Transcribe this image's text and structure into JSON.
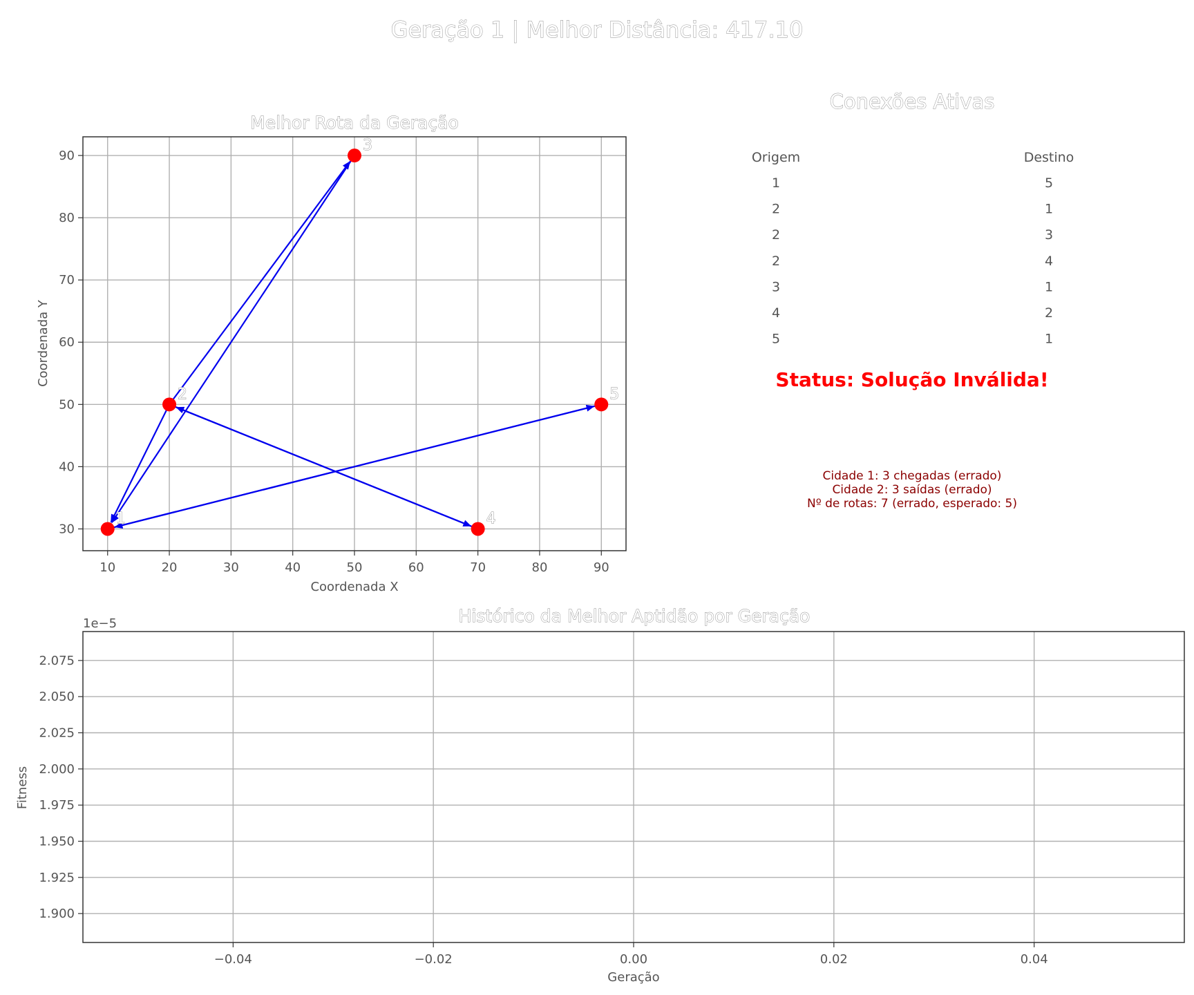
{
  "figure": {
    "suptitle": "Geração 1 | Melhor Distância: 417.10"
  },
  "route_panel": {
    "title": "Melhor Rota da Geração",
    "xlabel": "Coordenada X",
    "ylabel": "Coordenada Y"
  },
  "connections_panel": {
    "title": "Conexões Ativas",
    "headers": [
      "Origem",
      "Destino"
    ],
    "rows": [
      [
        "1",
        "5"
      ],
      [
        "2",
        "1"
      ],
      [
        "2",
        "3"
      ],
      [
        "2",
        "4"
      ],
      [
        "3",
        "1"
      ],
      [
        "4",
        "2"
      ],
      [
        "5",
        "1"
      ]
    ],
    "status": "Status: Solução Inválida!",
    "errors": [
      "Cidade 1: 3 chegadas (errado)",
      "Cidade 2: 3 saídas (errado)",
      "Nº de rotas: 7 (errado, esperado: 5)"
    ]
  },
  "fitness_panel": {
    "title": "Histórico da Melhor Aptidão por Geração",
    "xlabel": "Geração",
    "ylabel": "Fitness",
    "offset_text": "1e−5"
  },
  "colors": {
    "city_marker": "#ff0000",
    "route_arrow": "#0000ee",
    "status": "#ff0000",
    "errors": "#8b0000",
    "grid": "#b0b0b0"
  },
  "chart_data": [
    {
      "type": "scatter",
      "title": "Melhor Rota da Geração",
      "xlabel": "Coordenada X",
      "ylabel": "Coordenada Y",
      "xlim": [
        6,
        94
      ],
      "ylim": [
        26.5,
        93
      ],
      "xticks": [
        10,
        20,
        30,
        40,
        50,
        60,
        70,
        80,
        90
      ],
      "yticks": [
        30,
        40,
        50,
        60,
        70,
        80,
        90
      ],
      "grid": true,
      "points": [
        {
          "label": "1",
          "x": 10,
          "y": 30
        },
        {
          "label": "2",
          "x": 20,
          "y": 50
        },
        {
          "label": "3",
          "x": 50,
          "y": 90
        },
        {
          "label": "4",
          "x": 70,
          "y": 30
        },
        {
          "label": "5",
          "x": 90,
          "y": 50
        }
      ],
      "edges": [
        {
          "from": "1",
          "to": "5"
        },
        {
          "from": "2",
          "to": "1"
        },
        {
          "from": "2",
          "to": "3"
        },
        {
          "from": "2",
          "to": "4"
        },
        {
          "from": "3",
          "to": "1"
        },
        {
          "from": "4",
          "to": "2"
        },
        {
          "from": "5",
          "to": "1"
        }
      ]
    },
    {
      "type": "line",
      "title": "Histórico da Melhor Aptidão por Geração",
      "xlabel": "Geração",
      "ylabel": "Fitness",
      "x": [],
      "y": [],
      "xlim": [
        -0.055,
        0.055
      ],
      "ylim": [
        1.88,
        2.095
      ],
      "y_multiplier": "1e−5",
      "xticks": [
        -0.04,
        -0.02,
        0.0,
        0.02,
        0.04
      ],
      "xtick_labels": [
        "−0.04",
        "−0.02",
        "0.00",
        "0.02",
        "0.04"
      ],
      "yticks": [
        1.9,
        1.925,
        1.95,
        1.975,
        2.0,
        2.025,
        2.05,
        2.075
      ],
      "ytick_labels": [
        "1.900",
        "1.925",
        "1.950",
        "1.975",
        "2.000",
        "2.025",
        "2.050",
        "2.075"
      ],
      "grid": true
    }
  ]
}
